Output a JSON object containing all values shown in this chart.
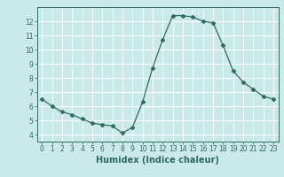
{
  "x": [
    0,
    1,
    2,
    3,
    4,
    5,
    6,
    7,
    8,
    9,
    10,
    11,
    12,
    13,
    14,
    15,
    16,
    17,
    18,
    19,
    20,
    21,
    22,
    23
  ],
  "y": [
    6.5,
    6.0,
    5.6,
    5.4,
    5.1,
    4.8,
    4.7,
    4.6,
    4.1,
    4.5,
    6.3,
    8.7,
    10.7,
    12.4,
    12.4,
    12.3,
    12.0,
    11.9,
    10.3,
    8.5,
    7.7,
    7.2,
    6.7,
    6.5
  ],
  "xlabel": "Humidex (Indice chaleur)",
  "ylim": [
    3.5,
    13.0
  ],
  "xlim": [
    -0.5,
    23.5
  ],
  "yticks": [
    4,
    5,
    6,
    7,
    8,
    9,
    10,
    11,
    12
  ],
  "xticks": [
    0,
    1,
    2,
    3,
    4,
    5,
    6,
    7,
    8,
    9,
    10,
    11,
    12,
    13,
    14,
    15,
    16,
    17,
    18,
    19,
    20,
    21,
    22,
    23
  ],
  "xtick_labels": [
    "0",
    "1",
    "2",
    "3",
    "4",
    "5",
    "6",
    "7",
    "8",
    "9",
    "10",
    "11",
    "12",
    "13",
    "14",
    "15",
    "16",
    "17",
    "18",
    "19",
    "20",
    "21",
    "22",
    "23"
  ],
  "line_color": "#2e6b5e",
  "marker": "D",
  "marker_size": 2.5,
  "bg_color": "#cce9e9",
  "grid_color": "#ffffff",
  "xlabel_fontsize": 7,
  "tick_fontsize": 5.5
}
